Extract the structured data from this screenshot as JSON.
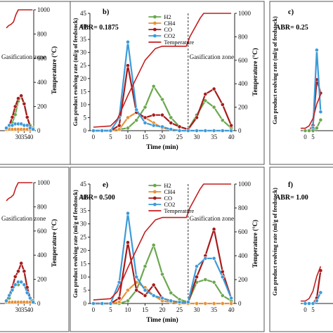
{
  "chart_data": [
    {
      "type": "line",
      "panel_label": "",
      "abr_label": "",
      "zone_label": "Gasification zone",
      "xlabel": "",
      "ylabel": "",
      "y2label": "Temperature (°C)",
      "xlim": [
        -3,
        43
      ],
      "ylim": [
        0,
        45
      ],
      "y2lim": [
        0,
        1000
      ],
      "xticks": [
        "30",
        "35",
        "40"
      ],
      "yticks": [],
      "y2ticks": [
        "0",
        "200",
        "400",
        "600",
        "800",
        "1000"
      ],
      "gasification_x": null,
      "legend": [],
      "series": [
        {
          "name": "H2",
          "color": "#6aa84f",
          "x": [
            20,
            22.5,
            25,
            27.5,
            30,
            32.5,
            35,
            37.5,
            40,
            42.5
          ],
          "y": [
            1,
            1.5,
            3,
            6,
            11,
            12.5,
            10,
            5,
            2,
            1
          ]
        },
        {
          "name": "CH4",
          "color": "#e69138",
          "x": [
            20,
            22.5,
            25,
            27.5,
            30,
            32.5,
            35,
            37.5,
            40,
            42.5
          ],
          "y": [
            0.5,
            0.5,
            0.5,
            0.5,
            0.5,
            0.5,
            0.5,
            0.5,
            0.5,
            0.5
          ]
        },
        {
          "name": "CO",
          "color": "#a61c1c",
          "x": [
            20,
            22.5,
            25,
            27.5,
            30,
            32.5,
            35,
            37.5,
            40,
            42.5
          ],
          "y": [
            1,
            2,
            5,
            9,
            12,
            13,
            10,
            5,
            1.5,
            0.5
          ]
        },
        {
          "name": "CO2",
          "color": "#3d9bd9",
          "x": [
            20,
            22.5,
            25,
            27.5,
            30,
            32.5,
            35,
            37.5,
            40,
            42.5
          ],
          "y": [
            1,
            2,
            2,
            2.5,
            2.5,
            2.5,
            2,
            2,
            1,
            0.5
          ]
        },
        {
          "name": "Temperature",
          "color": "#c41e1e",
          "axis": "right",
          "x": [
            20,
            22,
            24,
            26,
            27,
            28,
            30,
            32,
            35,
            40,
            42
          ],
          "y": [
            850,
            870,
            880,
            900,
            930,
            960,
            1000,
            1000,
            1000,
            1000,
            1000
          ]
        }
      ]
    },
    {
      "type": "line",
      "panel_label": "b)",
      "abr_label": "ABR= 0.1875",
      "zone_label": "Gasification zone",
      "xlabel": "Time (min)",
      "ylabel": "Gas product evolving rate (ml/g of feedstock)",
      "y2label": "Temperature (°C)",
      "xlim": [
        -1,
        41
      ],
      "ylim": [
        0,
        45
      ],
      "y2lim": [
        0,
        1000
      ],
      "xticks": [
        "0",
        "5",
        "10",
        "15",
        "20",
        "25",
        "30",
        "35",
        "40"
      ],
      "yticks": [
        "0",
        "5",
        "10",
        "15",
        "20",
        "25",
        "30",
        "35",
        "40",
        "45"
      ],
      "y2ticks": [
        "0",
        "200",
        "400",
        "600",
        "800",
        "1000"
      ],
      "gasification_x": 27.5,
      "legend": [
        "H2",
        "CH4",
        "CO",
        "CO2",
        "Temperature"
      ],
      "series": [
        {
          "name": "H2",
          "color": "#6aa84f",
          "x": [
            0,
            2.5,
            5,
            7.5,
            10,
            12.5,
            15,
            17.5,
            20,
            22.5,
            25,
            27.5,
            30,
            32.5,
            35,
            37.5,
            40
          ],
          "y": [
            0,
            0,
            0,
            0.5,
            1,
            4,
            9,
            17,
            12,
            5,
            1.5,
            0.5,
            6,
            11.5,
            9,
            4,
            1
          ]
        },
        {
          "name": "CH4",
          "color": "#e69138",
          "x": [
            0,
            2.5,
            5,
            7.5,
            10,
            12.5,
            15,
            17.5,
            20,
            22.5,
            25,
            27.5,
            30,
            32.5,
            35,
            37.5,
            40
          ],
          "y": [
            0,
            0,
            0,
            0.5,
            5,
            7,
            5,
            3,
            1,
            0.5,
            0,
            0,
            0,
            0,
            0,
            0,
            0
          ]
        },
        {
          "name": "CO",
          "color": "#a61c1c",
          "x": [
            0,
            2.5,
            5,
            7.5,
            10,
            12.5,
            15,
            17.5,
            20,
            22.5,
            25,
            27.5,
            30,
            32.5,
            35,
            37.5,
            40
          ],
          "y": [
            0,
            0,
            0,
            2,
            25,
            7,
            5,
            6,
            6,
            3,
            1.5,
            0.5,
            5,
            14,
            16,
            10,
            2
          ]
        },
        {
          "name": "CO2",
          "color": "#3d9bd9",
          "x": [
            0,
            2.5,
            5,
            7.5,
            10,
            12.5,
            15,
            17.5,
            20,
            22.5,
            25,
            27.5,
            30,
            32.5,
            35,
            37.5,
            40
          ],
          "y": [
            0,
            0,
            0,
            5,
            34,
            8,
            3,
            2,
            1.5,
            0.5,
            0,
            0,
            0,
            0,
            0,
            0,
            0
          ]
        },
        {
          "name": "Temperature",
          "color": "#c41e1e",
          "axis": "right",
          "x": [
            0,
            5,
            7,
            10,
            13,
            15,
            18,
            20,
            24,
            27,
            28,
            31,
            32,
            35,
            40
          ],
          "y": [
            30,
            40,
            100,
            300,
            480,
            600,
            700,
            720,
            720,
            720,
            800,
            960,
            1000,
            1000,
            1000
          ]
        }
      ]
    },
    {
      "type": "line",
      "panel_label": "c)",
      "abr_label": "ABR= 0.25",
      "zone_label": "",
      "xlabel": "",
      "ylabel": "Gas product evolving rate (ml/g of feedstock)",
      "y2label": "",
      "xlim": [
        -3,
        30
      ],
      "ylim": [
        0,
        45
      ],
      "y2lim": [
        0,
        1000
      ],
      "xticks": [
        "0",
        "5"
      ],
      "yticks": [],
      "y2ticks": [],
      "gasification_x": null,
      "legend": [],
      "series": [
        {
          "name": "CO",
          "color": "#a61c1c",
          "x": [
            0,
            2.5,
            5,
            7.5,
            10
          ],
          "y": [
            0,
            0,
            2,
            19,
            14
          ]
        },
        {
          "name": "CO2",
          "color": "#3d9bd9",
          "x": [
            0,
            2.5,
            5,
            7.5,
            10
          ],
          "y": [
            0,
            0,
            1,
            30,
            7
          ]
        },
        {
          "name": "H2",
          "color": "#6aa84f",
          "x": [
            0,
            2.5,
            5,
            7.5,
            10
          ],
          "y": [
            0,
            0,
            0,
            1,
            4
          ]
        },
        {
          "name": "Temperature",
          "color": "#c41e1e",
          "axis": "right",
          "x": [
            -3,
            0,
            2.5,
            5,
            7.5,
            10
          ],
          "y": [
            20,
            20,
            40,
            100,
            220,
            300
          ]
        }
      ]
    },
    {
      "type": "line",
      "panel_label": "",
      "abr_label": "",
      "zone_label": "Gasification zone",
      "xlabel": "",
      "ylabel": "",
      "y2label": "Temperature (°C)",
      "xlim": [
        -3,
        43
      ],
      "ylim": [
        0,
        45
      ],
      "y2lim": [
        0,
        1000
      ],
      "xticks": [
        "30",
        "35",
        "40"
      ],
      "yticks": [],
      "y2ticks": [
        "0",
        "200",
        "400",
        "600",
        "800",
        "1000"
      ],
      "gasification_x": null,
      "legend": [],
      "series": [
        {
          "name": "H2",
          "color": "#6aa84f",
          "x": [
            20,
            22.5,
            25,
            27.5,
            30,
            32.5,
            35,
            37.5,
            40,
            42.5
          ],
          "y": [
            1,
            2,
            5,
            7,
            7,
            8,
            7,
            5,
            2,
            1
          ]
        },
        {
          "name": "CH4",
          "color": "#e69138",
          "x": [
            20,
            22.5,
            25,
            27.5,
            30,
            32.5,
            35,
            37.5,
            40,
            42.5
          ],
          "y": [
            0.5,
            0.5,
            0.5,
            0.5,
            0.5,
            0.5,
            0.5,
            0.5,
            0.5,
            0.5
          ]
        },
        {
          "name": "CO",
          "color": "#a61c1c",
          "x": [
            20,
            22.5,
            25,
            27.5,
            30,
            32.5,
            35,
            37.5,
            40,
            42.5
          ],
          "y": [
            1,
            3,
            6,
            10,
            12,
            15,
            12,
            6,
            2,
            0.5
          ]
        },
        {
          "name": "CO2",
          "color": "#3d9bd9",
          "x": [
            20,
            22.5,
            25,
            27.5,
            30,
            32.5,
            35,
            37.5,
            40,
            42.5
          ],
          "y": [
            1,
            3,
            5,
            7,
            8,
            8,
            7,
            4,
            2,
            0.5
          ]
        },
        {
          "name": "Temperature",
          "color": "#c41e1e",
          "axis": "right",
          "x": [
            20,
            22,
            24,
            26,
            27,
            28,
            30,
            32,
            35,
            40,
            42
          ],
          "y": [
            850,
            870,
            880,
            900,
            930,
            960,
            1000,
            1000,
            1000,
            1000,
            1000
          ]
        }
      ]
    },
    {
      "type": "line",
      "panel_label": "e)",
      "abr_label": "ABR= 0.500",
      "zone_label": "Gasification zone",
      "xlabel": "Time (min)",
      "ylabel": "Gas product evolving rate (ml/g of feedstock)",
      "y2label": "Temperature (°C)",
      "xlim": [
        -1,
        41
      ],
      "ylim": [
        0,
        45
      ],
      "y2lim": [
        0,
        1000
      ],
      "xticks": [
        "0",
        "5",
        "10",
        "15",
        "20",
        "25",
        "30",
        "35",
        "40"
      ],
      "yticks": [
        "0",
        "5",
        "10",
        "15",
        "20",
        "25",
        "30",
        "35",
        "40",
        "45"
      ],
      "y2ticks": [
        "0",
        "200",
        "400",
        "600",
        "800",
        "1000"
      ],
      "gasification_x": 27.5,
      "legend": [
        "H2",
        "CH4",
        "CO",
        "CO2",
        "Temperature"
      ],
      "series": [
        {
          "name": "H2",
          "color": "#6aa84f",
          "x": [
            0,
            2.5,
            5,
            7.5,
            10,
            12.5,
            15,
            17.5,
            20,
            22.5,
            25,
            27.5,
            30,
            32.5,
            35,
            37.5,
            40
          ],
          "y": [
            0,
            0,
            0,
            0,
            1,
            5,
            14,
            22,
            11,
            4,
            1.5,
            0.5,
            8,
            9,
            8,
            3,
            1
          ]
        },
        {
          "name": "CH4",
          "color": "#e69138",
          "x": [
            0,
            2.5,
            5,
            7.5,
            10,
            12.5,
            15,
            17.5,
            20,
            22.5,
            25,
            27.5,
            30,
            32.5,
            35,
            37.5,
            40
          ],
          "y": [
            0,
            0,
            0,
            0.5,
            5,
            8,
            6,
            3,
            1,
            0.5,
            0,
            0,
            0,
            0,
            0,
            0,
            0
          ]
        },
        {
          "name": "CO",
          "color": "#a61c1c",
          "x": [
            0,
            2.5,
            5,
            7.5,
            10,
            12.5,
            15,
            17.5,
            20,
            22.5,
            25,
            27.5,
            30,
            32.5,
            35,
            37.5,
            40
          ],
          "y": [
            0,
            0,
            0,
            2,
            23,
            5,
            3,
            7,
            2,
            1,
            0.5,
            0.5,
            10,
            18,
            28,
            12,
            2
          ]
        },
        {
          "name": "CO2",
          "color": "#3d9bd9",
          "x": [
            0,
            2.5,
            5,
            7.5,
            10,
            12.5,
            15,
            17.5,
            20,
            22.5,
            25,
            27.5,
            30,
            32.5,
            35,
            37.5,
            40
          ],
          "y": [
            0,
            0,
            0,
            8,
            34,
            10,
            5,
            3,
            2,
            1,
            0.5,
            0.5,
            14,
            17,
            17,
            10,
            2
          ]
        },
        {
          "name": "Temperature",
          "color": "#c41e1e",
          "axis": "right",
          "x": [
            0,
            5,
            7,
            10,
            13,
            15,
            18,
            20,
            24,
            27,
            28,
            31,
            32,
            35,
            40
          ],
          "y": [
            30,
            40,
            100,
            300,
            480,
            600,
            700,
            720,
            720,
            720,
            800,
            960,
            1000,
            1000,
            1000
          ]
        }
      ]
    },
    {
      "type": "line",
      "panel_label": "f)",
      "abr_label": "ABR= 1.00",
      "zone_label": "",
      "xlabel": "",
      "ylabel": "Gas product evolving rate (ml/g of feedstock)",
      "y2label": "",
      "xlim": [
        -3,
        30
      ],
      "ylim": [
        0,
        45
      ],
      "y2lim": [
        0,
        1000
      ],
      "xticks": [
        "0",
        "5"
      ],
      "yticks": [],
      "y2ticks": [],
      "gasification_x": null,
      "legend": [],
      "series": [
        {
          "name": "CO",
          "color": "#a61c1c",
          "x": [
            0,
            2.5,
            5,
            7.5,
            10
          ],
          "y": [
            0,
            0,
            0,
            2,
            12
          ]
        },
        {
          "name": "CO2",
          "color": "#3d9bd9",
          "x": [
            0,
            2.5,
            5,
            7.5,
            10
          ],
          "y": [
            0,
            0,
            0,
            1,
            4
          ]
        },
        {
          "name": "Temperature",
          "color": "#c41e1e",
          "axis": "right",
          "x": [
            -3,
            0,
            2.5,
            5,
            7.5,
            10
          ],
          "y": [
            20,
            20,
            40,
            100,
            220,
            300
          ]
        }
      ]
    }
  ]
}
